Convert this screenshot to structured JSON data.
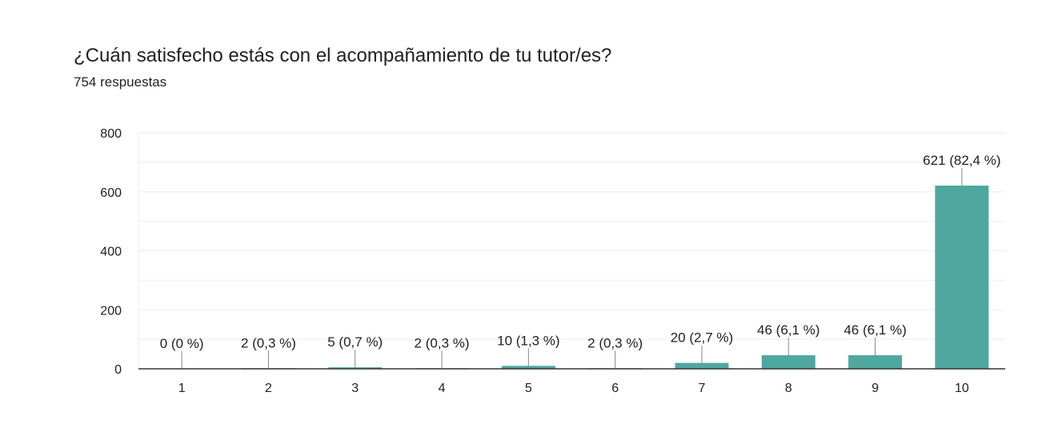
{
  "header": {
    "title": "¿Cuán satisfecho estás con el acompañamiento de tu tutor/es?",
    "subtitle": "754 respuestas"
  },
  "colors": {
    "bar": "#4ea8a0",
    "gridline": "#eeeeee",
    "axis": "#333333",
    "leader": "#888888"
  },
  "chart_data": {
    "type": "bar",
    "categories": [
      "1",
      "2",
      "3",
      "4",
      "5",
      "6",
      "7",
      "8",
      "9",
      "10"
    ],
    "values": [
      0,
      2,
      5,
      2,
      10,
      2,
      20,
      46,
      46,
      621
    ],
    "data_labels": [
      "0 (0 %)",
      "2 (0,3 %)",
      "5 (0,7 %)",
      "2 (0,3 %)",
      "10 (1,3 %)",
      "2 (0,3 %)",
      "20 (2,7 %)",
      "46 (6,1 %)",
      "46 (6,1 %)",
      "621 (82,4 %)"
    ],
    "ylim": [
      0,
      800
    ],
    "yticks": [
      0,
      200,
      400,
      600,
      800
    ],
    "grid": true,
    "legend": "none"
  }
}
